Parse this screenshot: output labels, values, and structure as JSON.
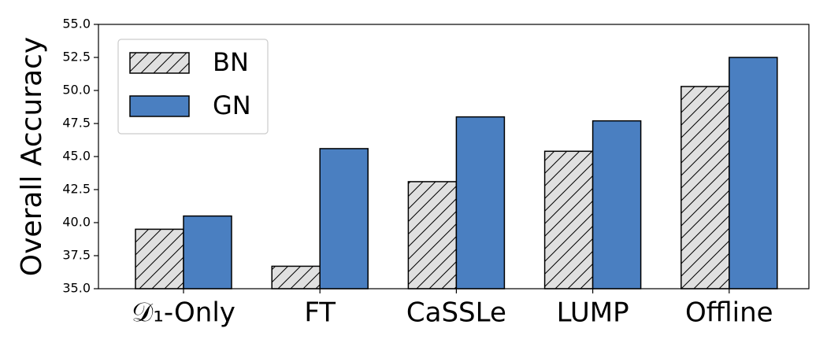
{
  "chart_data": {
    "type": "bar",
    "y_label": "Overall Accuracy",
    "categories": [
      "𝒟₁-Only",
      "FT",
      "CaSSLe",
      "LUMP",
      "Offline"
    ],
    "series": [
      {
        "name": "BN",
        "color": "#e0e0e0",
        "hatch": "/",
        "values": [
          39.5,
          36.7,
          43.1,
          45.4,
          50.3
        ]
      },
      {
        "name": "GN",
        "color": "#4a7fc1",
        "values": [
          40.5,
          45.6,
          48.0,
          47.7,
          52.5
        ]
      }
    ],
    "ylim": [
      35,
      55
    ],
    "yticks": [
      {
        "value": 35,
        "label": "35.0"
      },
      {
        "value": 37.5,
        "label": "37.5"
      },
      {
        "value": 40,
        "label": "40.0"
      },
      {
        "value": 42.5,
        "label": "42.5"
      },
      {
        "value": 45,
        "label": "45.0"
      },
      {
        "value": 47.5,
        "label": "47.5"
      },
      {
        "value": 50,
        "label": "50.0"
      },
      {
        "value": 52.5,
        "label": "52.5"
      },
      {
        "value": 55,
        "label": "55.0"
      }
    ],
    "legend": "upper left"
  }
}
